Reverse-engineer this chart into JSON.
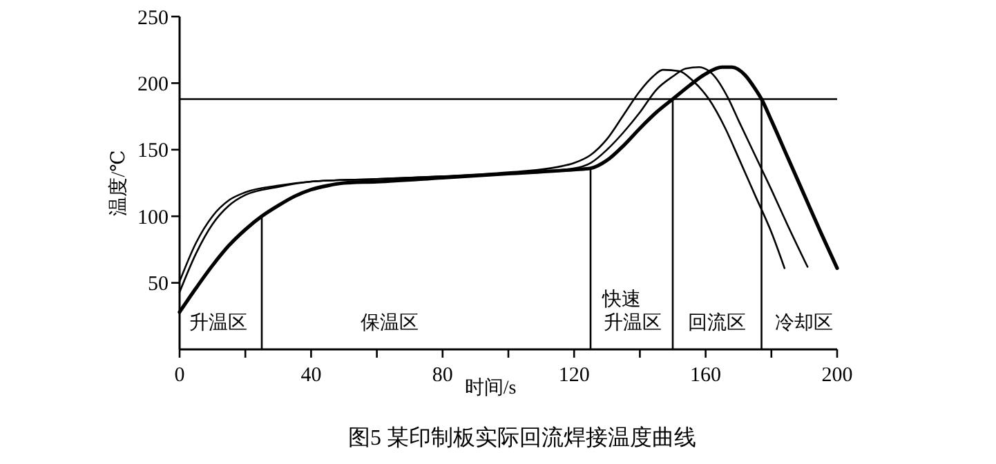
{
  "chart_data": {
    "type": "line",
    "title": "图5 某印制板实际回流焊接温度曲线",
    "xlabel": "时间/s",
    "ylabel": "温度/℃",
    "x": [
      0,
      5,
      10,
      15,
      20,
      25,
      30,
      35,
      40,
      45,
      50,
      60,
      80,
      100,
      120,
      125,
      130,
      135,
      140,
      145,
      150,
      155,
      160,
      165,
      168,
      172,
      175,
      177,
      180,
      185,
      190,
      195,
      200
    ],
    "series": [
      {
        "color": "#000000",
        "x": [
          0,
          5,
          10,
          15,
          20,
          30,
          40,
          60,
          80,
          100,
          115,
          120,
          125,
          130,
          135,
          140,
          144,
          147,
          152,
          156,
          161,
          166,
          170,
          175,
          180,
          184
        ],
        "values": [
          51,
          80,
          100,
          112,
          118,
          123,
          126,
          128,
          130,
          133,
          137,
          140,
          146,
          158,
          176,
          194,
          205,
          210,
          209,
          202,
          188,
          166,
          144,
          116,
          88,
          61
        ]
      },
      {
        "color": "#000000",
        "x": [
          0,
          5,
          10,
          15,
          20,
          30,
          40,
          60,
          80,
          100,
          120,
          125,
          130,
          135,
          140,
          145,
          150,
          154,
          158,
          162,
          167,
          170,
          175,
          180,
          185,
          191
        ],
        "values": [
          43,
          72,
          94,
          108,
          116,
          122,
          126,
          128,
          130,
          132,
          136,
          140,
          150,
          163,
          178,
          195,
          205,
          211,
          212,
          207,
          188,
          172,
          146,
          120,
          93,
          62
        ]
      },
      {
        "color": "#000000",
        "values": [
          28,
          46,
          63,
          78,
          90,
          100,
          108,
          115,
          120,
          123,
          125,
          126,
          129,
          132,
          135,
          136,
          142,
          153,
          166,
          178,
          188,
          198,
          207,
          212,
          212,
          206,
          196,
          188,
          172,
          144,
          116,
          88,
          61
        ]
      }
    ],
    "xlim": [
      0,
      200
    ],
    "xticks": [
      0,
      {
        "value": 20,
        "label": null
      },
      40,
      {
        "value": 60,
        "label": null
      },
      80,
      {
        "value": 100,
        "label": null
      },
      120,
      {
        "value": 140,
        "label": null
      },
      160,
      {
        "value": 180,
        "label": null
      },
      200
    ],
    "ylim": [
      0,
      250
    ],
    "yticks": [
      50,
      100,
      150,
      200,
      250
    ],
    "ref_lines": [
      {
        "axis": "y",
        "value": 188
      },
      {
        "axis": "x",
        "value": 25
      },
      {
        "axis": "x",
        "value": 125
      },
      {
        "axis": "x",
        "value": 150
      },
      {
        "axis": "x",
        "value": 177
      }
    ],
    "annotations": [
      "升温区",
      "保温区",
      "快速",
      "升温区",
      "回流区",
      "冷却区"
    ],
    "grid": false,
    "marker": "none",
    "line_style": "solid"
  }
}
